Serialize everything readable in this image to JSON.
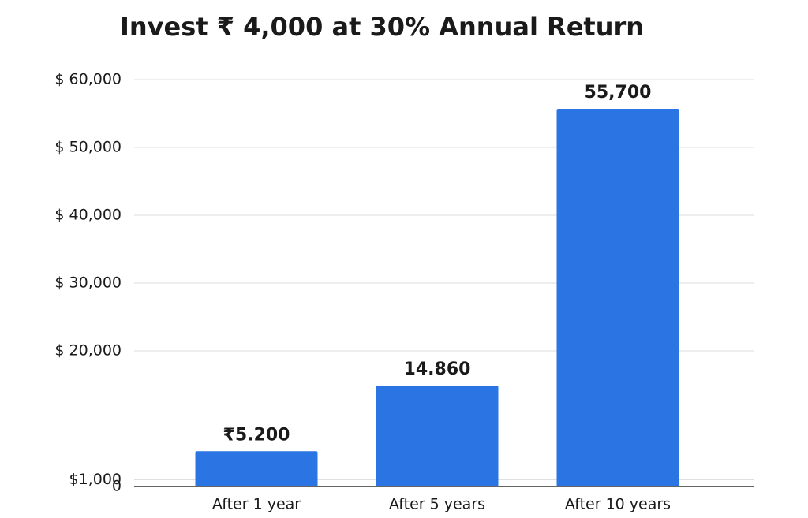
{
  "chart_data": {
    "type": "bar",
    "title": "Invest ₹ 4,000 at 30% Annual Return",
    "categories": [
      "After 1 year",
      "After 5 years",
      "After 10 years"
    ],
    "values": [
      5200,
      14860,
      55700
    ],
    "value_labels": [
      "₹5.200",
      "14.860",
      "55,700"
    ],
    "color": "#2a75e3",
    "ylim": [
      0,
      60000
    ],
    "yticks": [
      0,
      {
        "value": 1000,
        "label": "$1,000"
      },
      {
        "value": 20000,
        "label": "$ 20,000"
      },
      {
        "value": 30000,
        "label": "$ 30,000"
      },
      {
        "value": 40000,
        "label": "$ 40,000"
      },
      {
        "value": 50000,
        "label": "$ 50,000"
      },
      {
        "value": 60000,
        "label": "$ 60,000"
      }
    ],
    "grid": true
  }
}
